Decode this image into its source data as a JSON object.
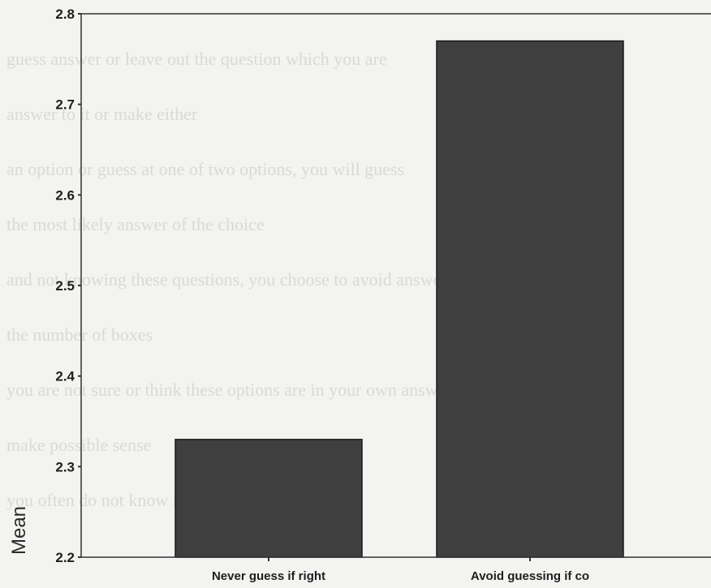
{
  "chart_data": {
    "type": "bar",
    "categories": [
      "Never guess if right",
      "Avoid guessing if co"
    ],
    "values": [
      2.33,
      2.77
    ],
    "ylabel": "Mean",
    "ylim": [
      2.2,
      2.8
    ],
    "yticks": [
      "2.2",
      "2.3",
      "2.4",
      "2.5",
      "2.6",
      "2.7",
      "2.8"
    ],
    "bar_color": "#3f3f3f",
    "grid": false
  },
  "background": {
    "color": "#f3f3f1",
    "bleed_through_text": [
      "guess answer or leave out the question which you are",
      "answer to it or make either",
      "an option or guess at one of two options, you will guess",
      "the most likely answer of the choice",
      "and not knowing these questions, you choose to avoid answering",
      "the number of boxes",
      "you are not sure or think these options are in your own answers",
      "make possible sense",
      "you often do not know if the question seems right"
    ]
  }
}
